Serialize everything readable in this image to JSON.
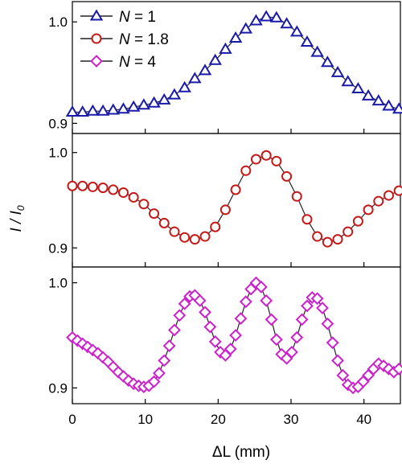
{
  "chart_data": [
    {
      "type": "line",
      "panel": "top",
      "ylim": [
        0.89,
        1.02
      ],
      "yticks": [
        0.9,
        1.0
      ],
      "ytick_labels": [
        "0.9",
        "1.0"
      ],
      "series": [
        {
          "name_prefix": "N",
          "name_suffix": " = 1",
          "marker": "triangle",
          "color": "#1a1aa8",
          "x": [
            0,
            1.4,
            2.8,
            4.2,
            5.6,
            7,
            8.4,
            9.8,
            11.2,
            12.6,
            14,
            15.4,
            16.8,
            18.2,
            19.6,
            21,
            22.4,
            23.8,
            25.2,
            26.6,
            28,
            29.4,
            30.8,
            32.2,
            33.6,
            35,
            36.4,
            37.8,
            39.2,
            40.6,
            42,
            43.4,
            44.8
          ],
          "y": [
            0.911,
            0.911,
            0.912,
            0.912,
            0.913,
            0.914,
            0.916,
            0.918,
            0.92,
            0.923,
            0.928,
            0.935,
            0.944,
            0.952,
            0.962,
            0.973,
            0.984,
            0.993,
            1.001,
            1.005,
            1.004,
            0.998,
            0.99,
            0.98,
            0.97,
            0.96,
            0.95,
            0.941,
            0.934,
            0.927,
            0.922,
            0.917,
            0.914
          ]
        }
      ]
    },
    {
      "type": "line",
      "panel": "middle",
      "ylim": [
        0.88,
        1.02
      ],
      "yticks": [
        0.9,
        1.0
      ],
      "ytick_labels": [
        "0.9",
        "1.0"
      ],
      "ylabel_main": "I / I",
      "ylabel_sub": "0",
      "series": [
        {
          "name_prefix": "N",
          "name_suffix": " = 1.8",
          "marker": "circle",
          "color": "#c41a1a",
          "x": [
            0,
            1.4,
            2.8,
            4.2,
            5.6,
            7,
            8.4,
            9.8,
            11.2,
            12.6,
            14,
            15.4,
            16.8,
            18.2,
            19.6,
            21,
            22.4,
            23.8,
            25.2,
            26.6,
            28,
            29.4,
            30.8,
            32.2,
            33.6,
            35,
            36.4,
            37.8,
            39.2,
            40.6,
            42,
            43.4,
            44.8
          ],
          "y": [
            0.965,
            0.965,
            0.964,
            0.963,
            0.961,
            0.958,
            0.953,
            0.946,
            0.936,
            0.926,
            0.917,
            0.911,
            0.909,
            0.912,
            0.922,
            0.94,
            0.961,
            0.981,
            0.993,
            0.997,
            0.991,
            0.975,
            0.954,
            0.93,
            0.912,
            0.906,
            0.909,
            0.917,
            0.928,
            0.94,
            0.949,
            0.955,
            0.96
          ]
        }
      ]
    },
    {
      "type": "line",
      "panel": "bottom",
      "ylim": [
        0.885,
        1.015
      ],
      "yticks": [
        0.9,
        1.0
      ],
      "ytick_labels": [
        "0.9",
        "1.0"
      ],
      "xlim": [
        0,
        45
      ],
      "xticks": [
        0,
        10,
        20,
        30,
        40
      ],
      "xtick_labels": [
        "0",
        "10",
        "20",
        "30",
        "40"
      ],
      "xlabel_main": "ΔL",
      "xlabel_units": " (mm)",
      "series": [
        {
          "name_prefix": "N",
          "name_suffix": " = 4",
          "marker": "diamond",
          "color": "#cc22cc",
          "x": [
            0,
            0.7,
            1.4,
            2.1,
            2.8,
            3.5,
            4.2,
            4.9,
            5.6,
            6.3,
            7,
            7.7,
            8.4,
            9.1,
            9.8,
            10.5,
            11.2,
            11.9,
            12.6,
            13.3,
            14,
            14.7,
            15.4,
            16.1,
            16.8,
            17.5,
            18.2,
            18.9,
            19.6,
            20.3,
            21,
            21.7,
            22.4,
            23.1,
            23.8,
            24.5,
            25.2,
            25.9,
            26.6,
            27.3,
            28,
            28.7,
            29.4,
            30.1,
            30.8,
            31.5,
            32.2,
            32.9,
            33.6,
            34.3,
            35,
            35.7,
            36.4,
            37.1,
            37.8,
            38.5,
            39.2,
            39.9,
            40.6,
            41.3,
            42,
            42.7,
            43.4,
            44.1,
            44.8
          ],
          "y": [
            0.948,
            0.945,
            0.942,
            0.939,
            0.936,
            0.933,
            0.929,
            0.925,
            0.92,
            0.915,
            0.911,
            0.907,
            0.904,
            0.902,
            0.901,
            0.902,
            0.906,
            0.914,
            0.926,
            0.94,
            0.955,
            0.969,
            0.98,
            0.987,
            0.988,
            0.983,
            0.972,
            0.958,
            0.944,
            0.934,
            0.931,
            0.937,
            0.95,
            0.966,
            0.982,
            0.994,
            1.0,
            0.996,
            0.983,
            0.965,
            0.946,
            0.932,
            0.928,
            0.934,
            0.948,
            0.965,
            0.978,
            0.986,
            0.985,
            0.976,
            0.961,
            0.943,
            0.926,
            0.912,
            0.903,
            0.9,
            0.901,
            0.906,
            0.912,
            0.918,
            0.923,
            0.921,
            0.918,
            0.915,
            0.918
          ]
        }
      ]
    }
  ]
}
